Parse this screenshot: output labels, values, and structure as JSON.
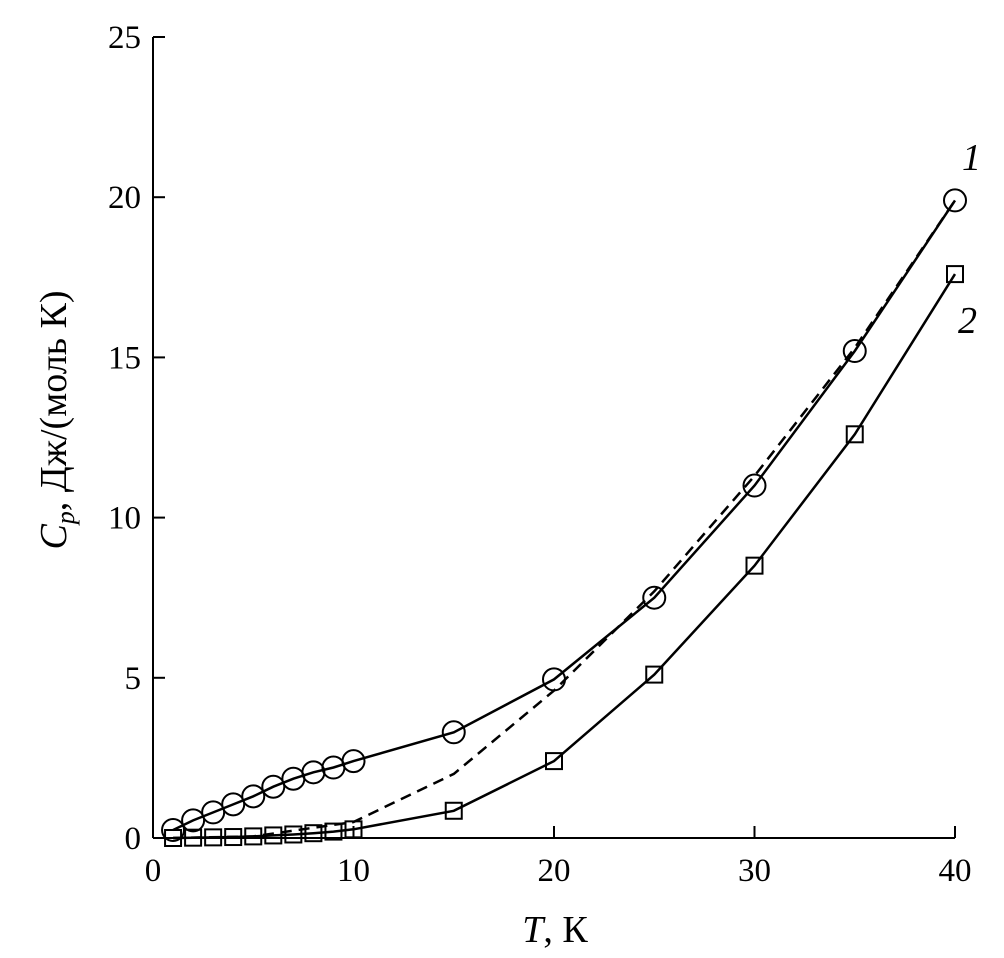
{
  "chart_data": {
    "type": "line",
    "xlabel": {
      "symbol": "T",
      "rest": ", К"
    },
    "ylabel": {
      "symbol": "C",
      "subscript": "p",
      "rest": ", Дж/(моль К)"
    },
    "xlim": [
      0,
      40
    ],
    "ylim": [
      0,
      25
    ],
    "x_ticks": [
      0,
      10,
      20,
      30,
      40
    ],
    "y_ticks": [
      0,
      5,
      10,
      15,
      20,
      25
    ],
    "grid": false,
    "series": [
      {
        "name": "1",
        "marker": "circle",
        "line": "solid",
        "x": [
          1,
          2,
          3,
          4,
          5,
          6,
          7,
          8,
          9,
          10,
          15,
          20,
          25,
          30,
          35,
          40
        ],
        "y": [
          0.25,
          0.55,
          0.8,
          1.05,
          1.3,
          1.6,
          1.85,
          2.05,
          2.2,
          2.4,
          3.3,
          4.95,
          7.5,
          11.0,
          15.2,
          19.9
        ]
      },
      {
        "name": "2",
        "marker": "square",
        "line": "solid",
        "x": [
          1,
          2,
          3,
          4,
          5,
          6,
          7,
          8,
          9,
          10,
          15,
          20,
          25,
          30,
          35,
          40
        ],
        "y": [
          0.0,
          0.01,
          0.02,
          0.03,
          0.05,
          0.08,
          0.11,
          0.15,
          0.2,
          0.27,
          0.85,
          2.4,
          5.1,
          8.5,
          12.6,
          17.6
        ]
      },
      {
        "name": "",
        "marker": "none",
        "line": "dashed",
        "x": [
          1,
          5,
          10,
          15,
          20,
          25,
          30,
          35,
          40
        ],
        "y": [
          0.0,
          0.05,
          0.5,
          2.0,
          4.6,
          7.7,
          11.3,
          15.3,
          19.9
        ]
      }
    ]
  }
}
